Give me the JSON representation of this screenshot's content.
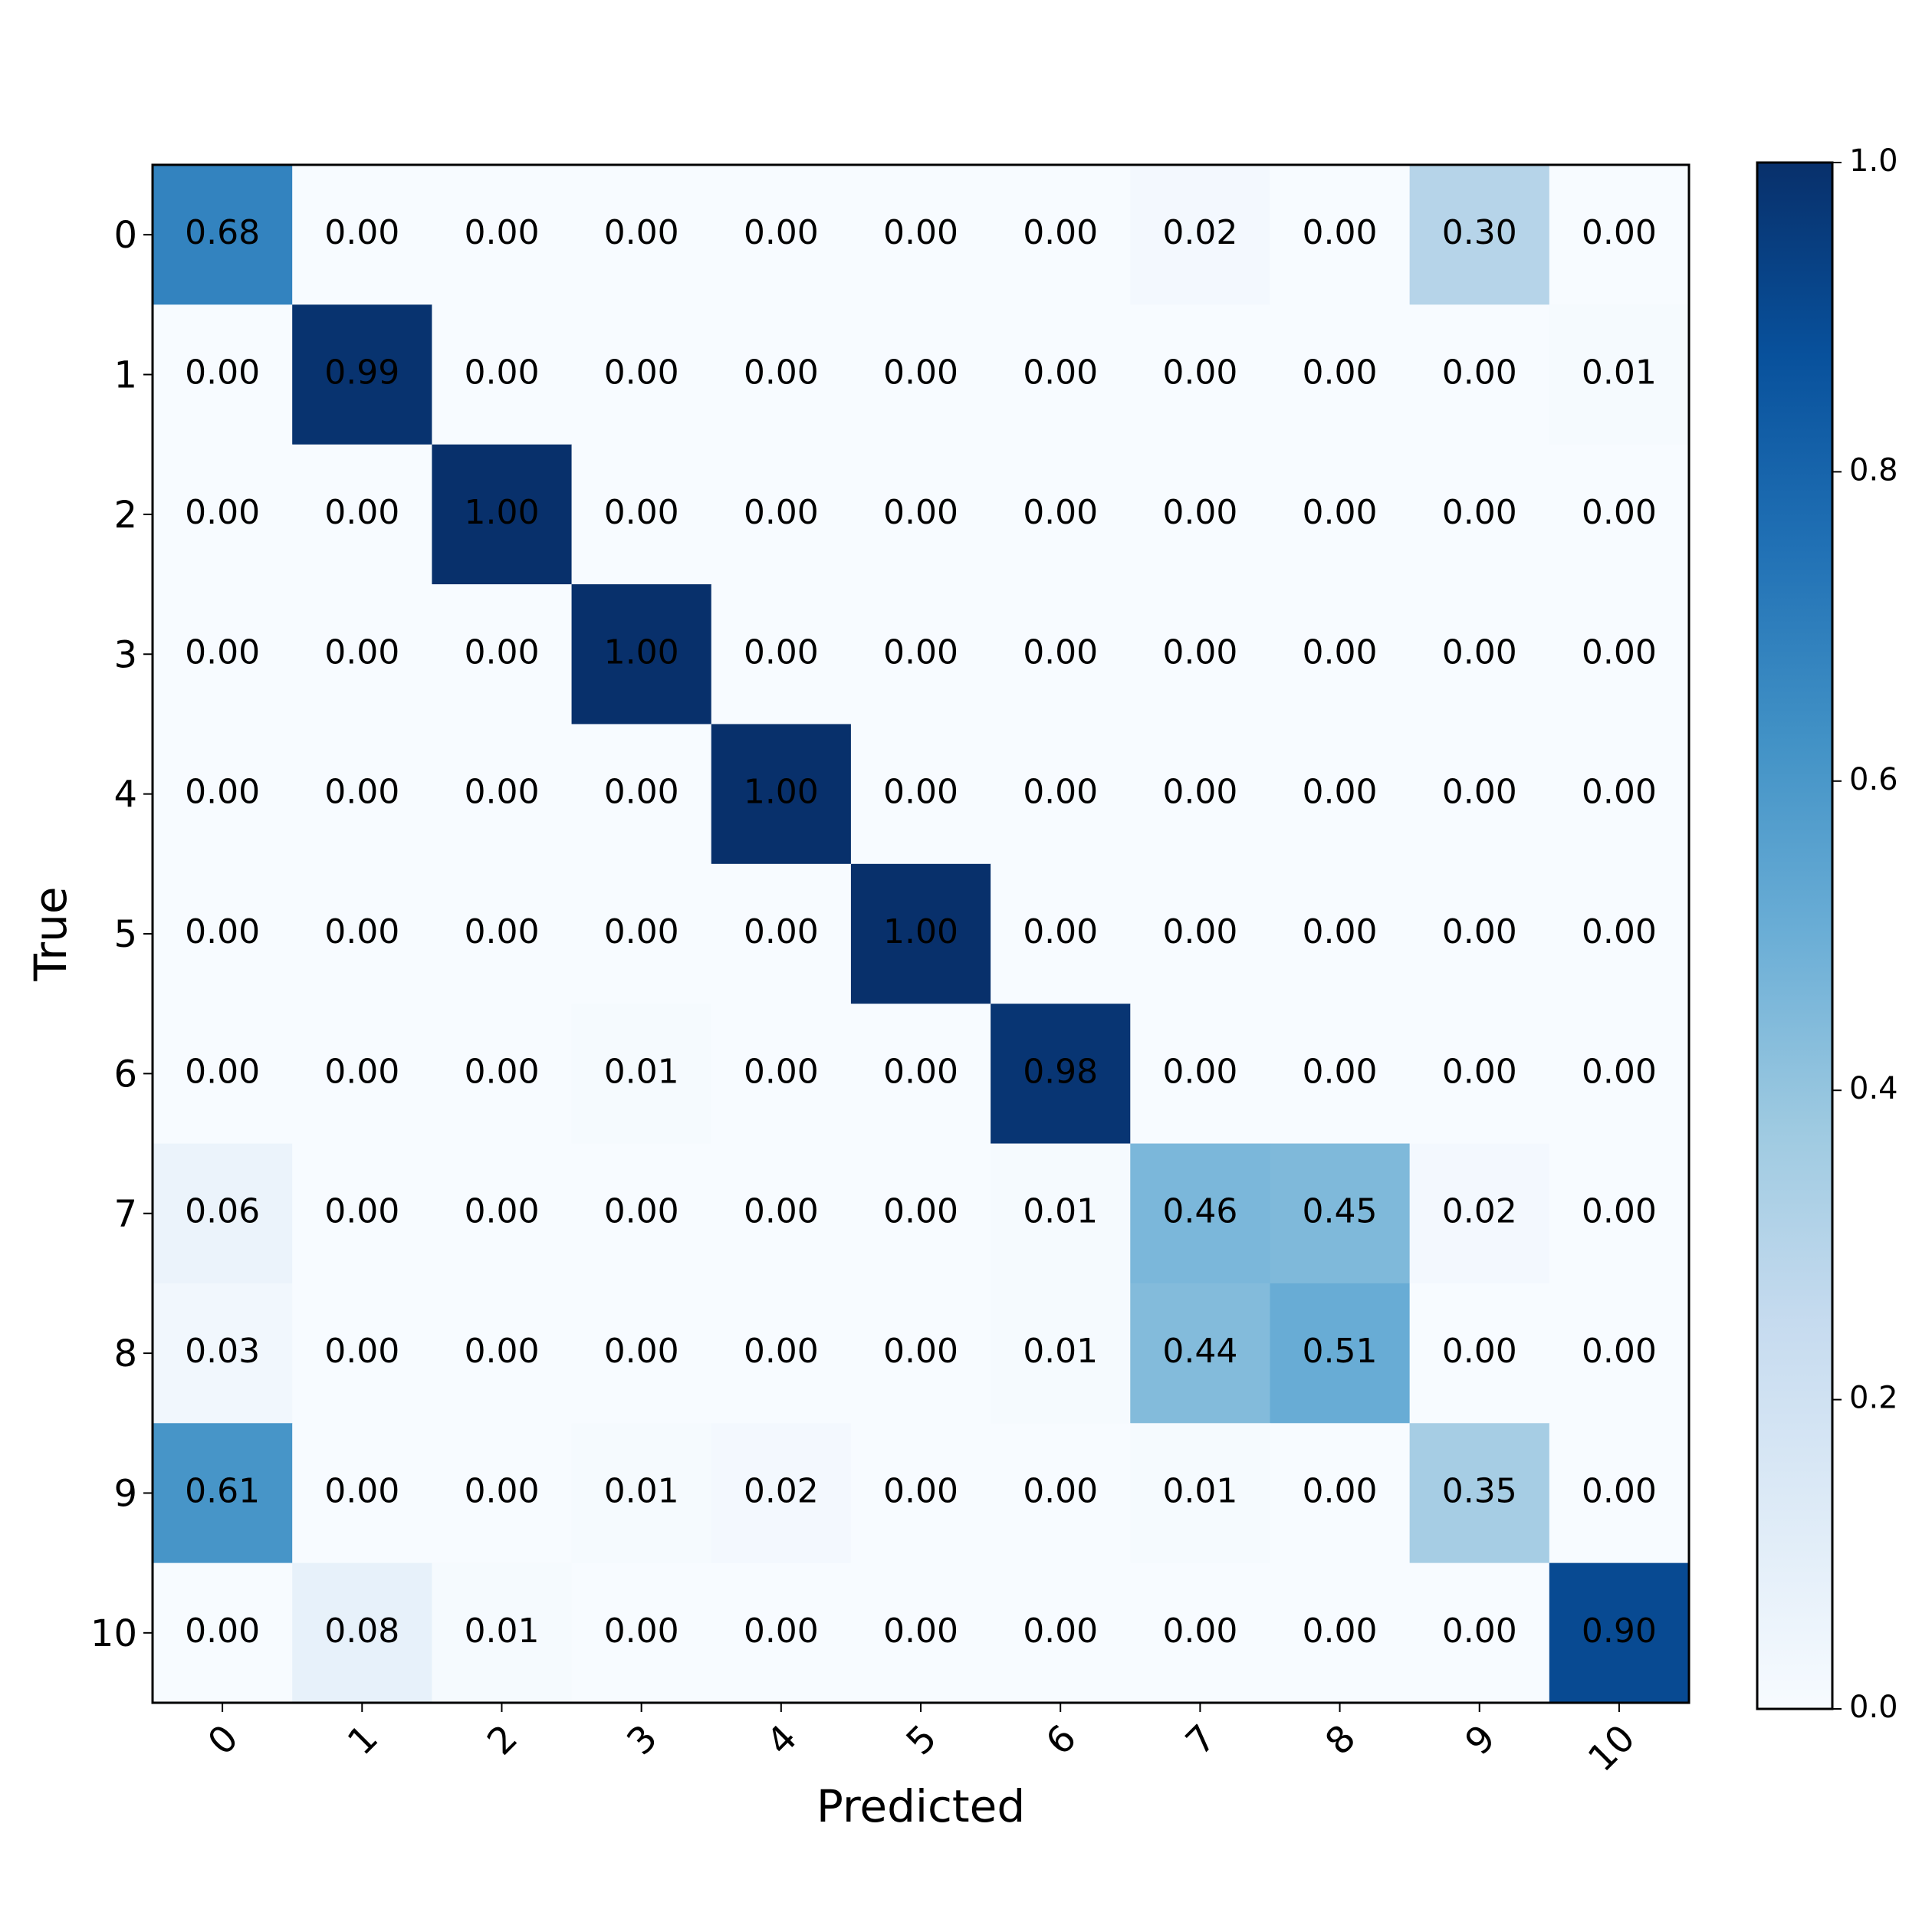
{
  "chart_data": {
    "type": "heatmap",
    "x_label": "Predicted",
    "y_label": "True",
    "categories": [
      "0",
      "1",
      "2",
      "3",
      "4",
      "5",
      "6",
      "7",
      "8",
      "9",
      "10"
    ],
    "y_categories": [
      "0",
      "1",
      "2",
      "3",
      "4",
      "5",
      "6",
      "7",
      "8",
      "9",
      "10"
    ],
    "values": [
      [
        0.68,
        0,
        0,
        0,
        0,
        0,
        0,
        0.02,
        0,
        0.3,
        0
      ],
      [
        0,
        0.99,
        0,
        0,
        0,
        0,
        0,
        0,
        0,
        0,
        0.01
      ],
      [
        0,
        0,
        1,
        0,
        0,
        0,
        0,
        0,
        0,
        0,
        0
      ],
      [
        0,
        0,
        0,
        1,
        0,
        0,
        0,
        0,
        0,
        0,
        0
      ],
      [
        0,
        0,
        0,
        0,
        1,
        0,
        0,
        0,
        0,
        0,
        0
      ],
      [
        0,
        0,
        0,
        0,
        0,
        1,
        0,
        0,
        0,
        0,
        0
      ],
      [
        0,
        0,
        0,
        0.01,
        0,
        0,
        0.98,
        0,
        0,
        0,
        0
      ],
      [
        0.06,
        0,
        0,
        0,
        0,
        0,
        0.01,
        0.46,
        0.45,
        0.02,
        0
      ],
      [
        0.03,
        0,
        0,
        0,
        0,
        0,
        0.01,
        0.44,
        0.51,
        0,
        0
      ],
      [
        0.61,
        0,
        0,
        0.01,
        0.02,
        0,
        0,
        0.01,
        0,
        0.35,
        0
      ],
      [
        0,
        0.08,
        0.01,
        0,
        0,
        0,
        0,
        0,
        0,
        0,
        0.9
      ]
    ],
    "value_labels": [
      [
        "0.68",
        "0.00",
        "0.00",
        "0.00",
        "0.00",
        "0.00",
        "0.00",
        "0.02",
        "0.00",
        "0.30",
        "0.00"
      ],
      [
        "0.00",
        "0.99",
        "0.00",
        "0.00",
        "0.00",
        "0.00",
        "0.00",
        "0.00",
        "0.00",
        "0.00",
        "0.01"
      ],
      [
        "0.00",
        "0.00",
        "1.00",
        "0.00",
        "0.00",
        "0.00",
        "0.00",
        "0.00",
        "0.00",
        "0.00",
        "0.00"
      ],
      [
        "0.00",
        "0.00",
        "0.00",
        "1.00",
        "0.00",
        "0.00",
        "0.00",
        "0.00",
        "0.00",
        "0.00",
        "0.00"
      ],
      [
        "0.00",
        "0.00",
        "0.00",
        "0.00",
        "1.00",
        "0.00",
        "0.00",
        "0.00",
        "0.00",
        "0.00",
        "0.00"
      ],
      [
        "0.00",
        "0.00",
        "0.00",
        "0.00",
        "0.00",
        "1.00",
        "0.00",
        "0.00",
        "0.00",
        "0.00",
        "0.00"
      ],
      [
        "0.00",
        "0.00",
        "0.00",
        "0.01",
        "0.00",
        "0.00",
        "0.98",
        "0.00",
        "0.00",
        "0.00",
        "0.00"
      ],
      [
        "0.06",
        "0.00",
        "0.00",
        "0.00",
        "0.00",
        "0.00",
        "0.01",
        "0.46",
        "0.45",
        "0.02",
        "0.00"
      ],
      [
        "0.03",
        "0.00",
        "0.00",
        "0.00",
        "0.00",
        "0.00",
        "0.01",
        "0.44",
        "0.51",
        "0.00",
        "0.00"
      ],
      [
        "0.61",
        "0.00",
        "0.00",
        "0.01",
        "0.02",
        "0.00",
        "0.00",
        "0.01",
        "0.00",
        "0.35",
        "0.00"
      ],
      [
        "0.00",
        "0.08",
        "0.01",
        "0.00",
        "0.00",
        "0.00",
        "0.00",
        "0.00",
        "0.00",
        "0.00",
        "0.90"
      ]
    ],
    "colorscale": [
      "#f7fbff",
      "#deebf7",
      "#c6dbef",
      "#9ecae1",
      "#6baed6",
      "#4292c6",
      "#2171b5",
      "#08519c",
      "#08306b"
    ],
    "zlim": [
      0,
      1
    ],
    "zticks": [
      {
        "value": 0,
        "label": "0.0"
      },
      0.2,
      0.4,
      0.6,
      0.8,
      {
        "value": 1,
        "label": "1.0"
      }
    ]
  }
}
